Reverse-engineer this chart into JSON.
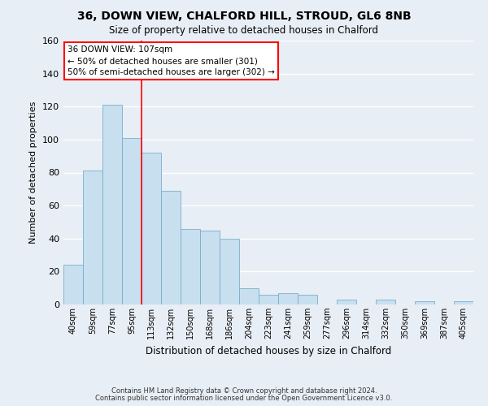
{
  "title": "36, DOWN VIEW, CHALFORD HILL, STROUD, GL6 8NB",
  "subtitle": "Size of property relative to detached houses in Chalford",
  "xlabel": "Distribution of detached houses by size in Chalford",
  "ylabel": "Number of detached properties",
  "bar_color": "#c8dff0",
  "bar_edge_color": "#7aaec8",
  "background_color": "#e8eef5",
  "grid_color": "#ffffff",
  "bin_labels": [
    "40sqm",
    "59sqm",
    "77sqm",
    "95sqm",
    "113sqm",
    "132sqm",
    "150sqm",
    "168sqm",
    "186sqm",
    "204sqm",
    "223sqm",
    "241sqm",
    "259sqm",
    "277sqm",
    "296sqm",
    "314sqm",
    "332sqm",
    "350sqm",
    "369sqm",
    "387sqm",
    "405sqm"
  ],
  "bar_heights": [
    24,
    81,
    121,
    101,
    92,
    69,
    46,
    45,
    40,
    10,
    6,
    7,
    6,
    0,
    3,
    0,
    3,
    0,
    2,
    0,
    2
  ],
  "ylim": [
    0,
    160
  ],
  "yticks": [
    0,
    20,
    40,
    60,
    80,
    100,
    120,
    140,
    160
  ],
  "red_line_x": 3.5,
  "annotation_line1": "36 DOWN VIEW: 107sqm",
  "annotation_line2": "← 50% of detached houses are smaller (301)",
  "annotation_line3": "50% of semi-detached houses are larger (302) →",
  "footnote1": "Contains HM Land Registry data © Crown copyright and database right 2024.",
  "footnote2": "Contains public sector information licensed under the Open Government Licence v3.0."
}
